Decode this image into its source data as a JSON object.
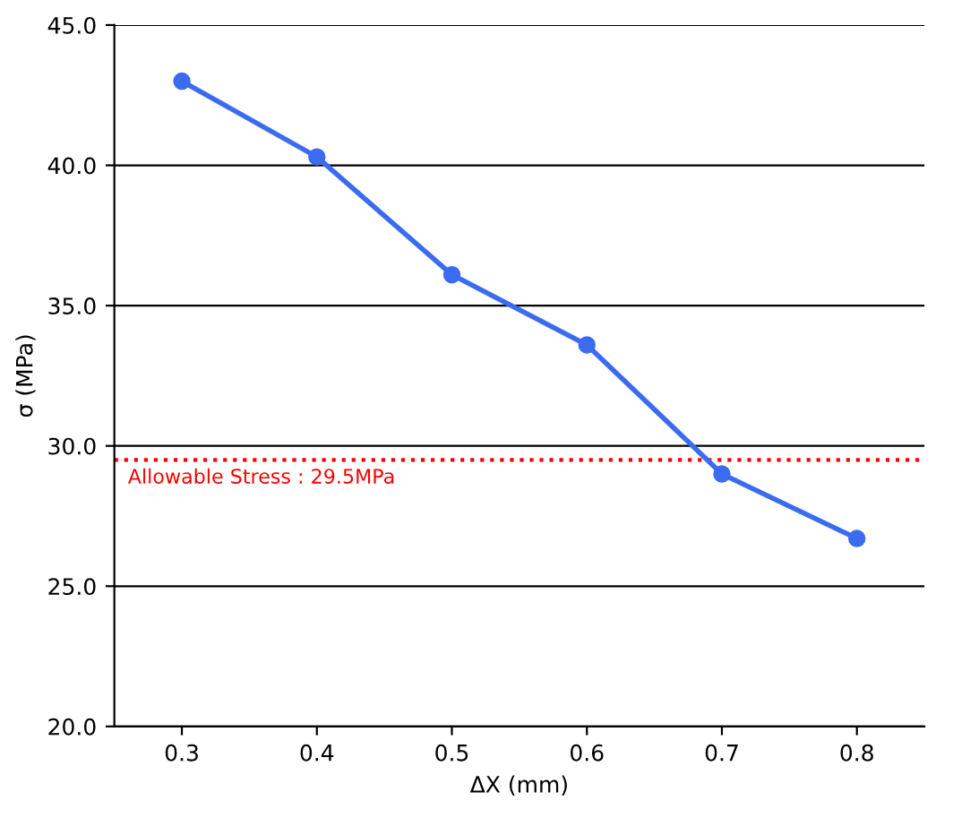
{
  "chart_data": {
    "type": "line",
    "xlabel": "ΔX (mm)",
    "ylabel": "σ (MPa)",
    "categories": [
      "0.3",
      "0.4",
      "0.5",
      "0.6",
      "0.7",
      "0.8"
    ],
    "series": [
      {
        "color": "#3b6cf0",
        "values": [
          43.0,
          40.3,
          36.1,
          33.6,
          29.0,
          26.7
        ]
      }
    ],
    "ylim": [
      20,
      45
    ],
    "yticks": [
      {
        "value": 20,
        "label": "20.0"
      },
      {
        "value": 25,
        "label": "25.0"
      },
      {
        "value": 30,
        "label": "30.0"
      },
      {
        "value": 35,
        "label": "35.0"
      },
      {
        "value": 40,
        "label": "40.0"
      },
      {
        "value": 45,
        "label": "45.0"
      }
    ],
    "ref_lines": [
      {
        "axis": "y",
        "value": 29.5,
        "label": "Allowable Stress : 29.5MPa",
        "color": "#ff0000",
        "line_style": "dotted"
      }
    ],
    "grid": "y",
    "marker": "circle",
    "line_style": "solid"
  }
}
